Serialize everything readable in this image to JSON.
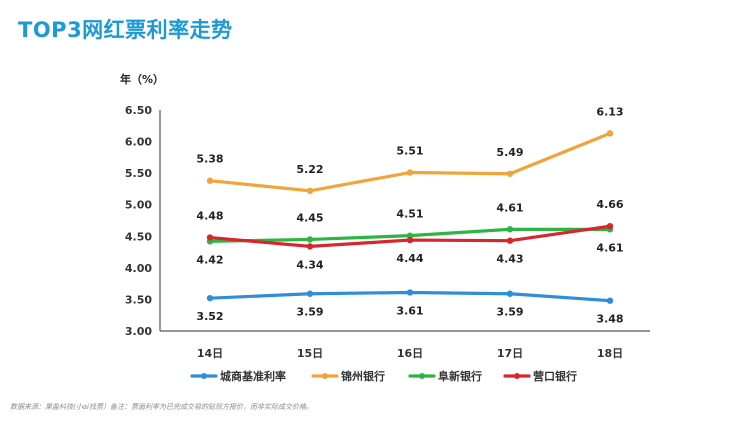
{
  "page": {
    "title": "TOP3网红票利率走势",
    "source_note": "数据来源：果盈科技(小ai找票）备注：票面利率为已完成交易的贴现方报价，而非实际成交价格。"
  },
  "chart_data": {
    "type": "line",
    "title": "",
    "ylabel": "年（%）",
    "xlabel": "",
    "categories": [
      "14日",
      "15日",
      "16日",
      "17日",
      "18日"
    ],
    "ylim": [
      3.0,
      6.5
    ],
    "yticks": [
      "3.00",
      "3.50",
      "4.00",
      "4.50",
      "5.00",
      "5.50",
      "6.00",
      "6.50"
    ],
    "grid": false,
    "legend_position": "bottom",
    "series": [
      {
        "name": "城商基准利率",
        "color": "#2e8fd8",
        "values": [
          3.52,
          3.59,
          3.61,
          3.59,
          3.48
        ],
        "labels": [
          "3.52",
          "3.59",
          "3.61",
          "3.59",
          "3.48"
        ]
      },
      {
        "name": "锦州银行",
        "color": "#f0a43a",
        "values": [
          5.38,
          5.22,
          5.51,
          5.49,
          6.13
        ],
        "labels": [
          "5.38",
          "5.22",
          "5.51",
          "5.49",
          "6.13"
        ]
      },
      {
        "name": "阜新银行",
        "color": "#2db543",
        "values": [
          4.42,
          4.45,
          4.51,
          4.61,
          4.61
        ],
        "labels": [
          "4.42",
          "4.45",
          "4.51",
          "4.61",
          "4.61"
        ]
      },
      {
        "name": "营口银行",
        "color": "#d8262e",
        "values": [
          4.48,
          4.34,
          4.44,
          4.43,
          4.66
        ],
        "labels": [
          "4.48",
          "4.34",
          "4.44",
          "4.43",
          "4.66"
        ]
      }
    ]
  }
}
